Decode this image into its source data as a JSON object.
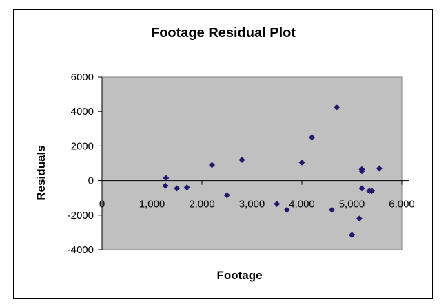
{
  "chart_data": {
    "type": "scatter",
    "title": "Footage  Residual Plot",
    "xlabel": "Footage",
    "ylabel": "Residuals",
    "xlim": [
      0,
      6000
    ],
    "ylim": [
      -4000,
      6000
    ],
    "x_ticks": [
      {
        "value": 0,
        "label": "0"
      },
      {
        "value": 1000,
        "label": "1,000"
      },
      {
        "value": 2000,
        "label": "2,000"
      },
      {
        "value": 3000,
        "label": "3,000"
      },
      {
        "value": 4000,
        "label": "4,000"
      },
      {
        "value": 5000,
        "label": "5,000"
      },
      {
        "value": 6000,
        "label": "6,000"
      }
    ],
    "y_ticks": [
      {
        "value": 6000,
        "label": "6000"
      },
      {
        "value": 4000,
        "label": "4000"
      },
      {
        "value": 2000,
        "label": "2000"
      },
      {
        "value": 0,
        "label": "0"
      },
      {
        "value": -2000,
        "label": "-2000"
      },
      {
        "value": -4000,
        "label": "-4000"
      }
    ],
    "grid": false,
    "legend": "none",
    "plot_background": "#c0c0c0",
    "marker_color": "#1f1a6b",
    "points": [
      {
        "x": 1280,
        "y": 150
      },
      {
        "x": 1270,
        "y": -300
      },
      {
        "x": 1500,
        "y": -450
      },
      {
        "x": 1700,
        "y": -400
      },
      {
        "x": 2200,
        "y": 900
      },
      {
        "x": 2500,
        "y": -850
      },
      {
        "x": 2800,
        "y": 1200
      },
      {
        "x": 3500,
        "y": -1350
      },
      {
        "x": 3700,
        "y": -1700
      },
      {
        "x": 4000,
        "y": 1050
      },
      {
        "x": 4200,
        "y": 2500
      },
      {
        "x": 4600,
        "y": -1700
      },
      {
        "x": 4700,
        "y": 4250
      },
      {
        "x": 5000,
        "y": -3150
      },
      {
        "x": 5150,
        "y": -2200
      },
      {
        "x": 5200,
        "y": 650
      },
      {
        "x": 5200,
        "y": 550
      },
      {
        "x": 5200,
        "y": -450
      },
      {
        "x": 5350,
        "y": -600
      },
      {
        "x": 5400,
        "y": -600
      },
      {
        "x": 5550,
        "y": 700
      }
    ]
  }
}
